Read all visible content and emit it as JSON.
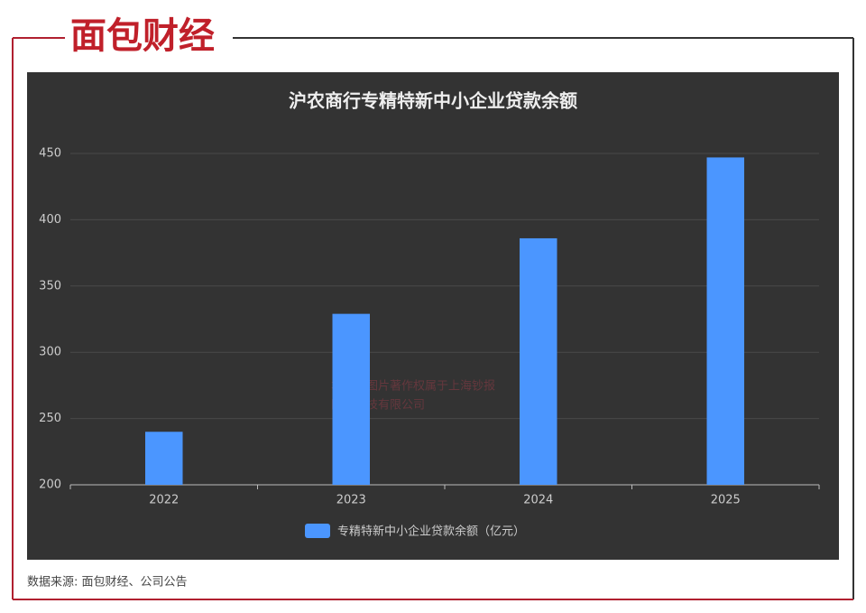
{
  "brand": "面包财经",
  "watermark": [
    "本图表图片著作权属于上海钞报",
    "网络科技有限公司"
  ],
  "source": "数据来源: 面包财经、公司公告",
  "chart_data": {
    "type": "bar",
    "title": "沪农商行专精特新中小企业贷款余额",
    "categories": [
      "2022",
      "2023",
      "2024",
      "2025"
    ],
    "series": [
      {
        "name": "专精特新中小企业贷款余额（亿元）",
        "color": "#4b96ff",
        "values": [
          240,
          329,
          386,
          447
        ]
      }
    ],
    "ylim": [
      200,
      450
    ],
    "yticks": [
      200,
      250,
      300,
      350,
      400,
      450
    ],
    "grid": true,
    "legend": "bottom"
  }
}
